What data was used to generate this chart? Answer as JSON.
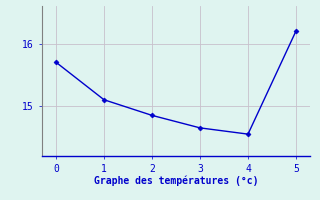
{
  "x": [
    0,
    1,
    2,
    3,
    4,
    5
  ],
  "y": [
    15.7,
    15.1,
    14.85,
    14.65,
    14.55,
    16.2
  ],
  "line_color": "#0000cc",
  "marker": "D",
  "marker_size": 2.5,
  "linewidth": 1.0,
  "bg_color": "#dff4f0",
  "grid_color": "#c8c0cc",
  "xlabel": "Graphe des températures (°c)",
  "xlabel_color": "#0000cc",
  "xlabel_fontsize": 7,
  "tick_color": "#0000cc",
  "tick_fontsize": 7,
  "spine_color": "#808080",
  "bottom_spine_color": "#0000cc",
  "ylim": [
    14.2,
    16.6
  ],
  "xlim": [
    -0.3,
    5.3
  ],
  "yticks": [
    15,
    16
  ],
  "xticks": [
    0,
    1,
    2,
    3,
    4,
    5
  ]
}
